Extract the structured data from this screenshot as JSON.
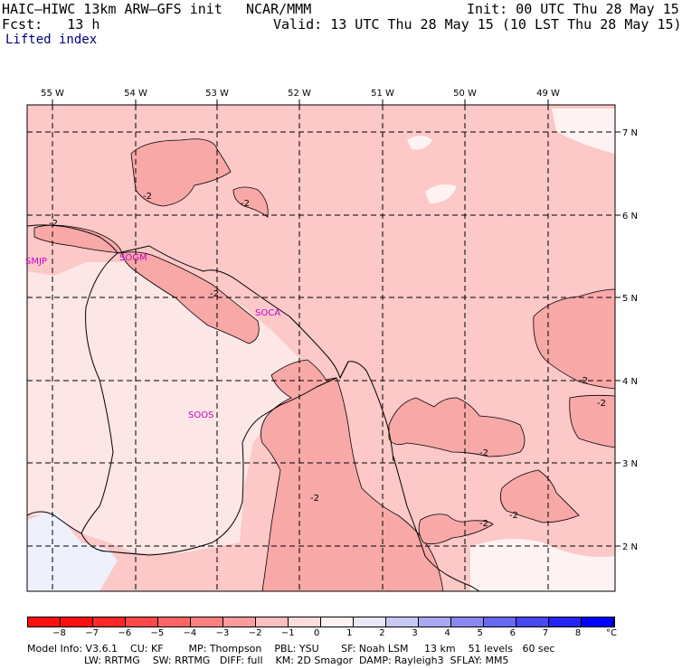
{
  "header": {
    "model_title": "HAIC–HIWC 13km ARW–GFS init",
    "org": "NCAR/MMM",
    "init": "Init: 00 UTC Thu 28 May 15",
    "fcst": "Fcst:   13 h",
    "valid": "Valid: 13 UTC Thu 28 May 15 (10 LST Thu 28 May 15)",
    "field": "Lifted index"
  },
  "map": {
    "lon_labels": [
      "55 W",
      "54 W",
      "53 W",
      "52 W",
      "51 W",
      "50 W",
      "49 W"
    ],
    "lat_labels": [
      "7 N",
      "6 N",
      "5 N",
      "4 N",
      "3 N",
      "2 N"
    ],
    "stations": [
      "SMJP",
      "SOGM",
      "SOCA",
      "SOOS"
    ],
    "contour_label": "-2",
    "colors": {
      "lt_m3": "#f9a8a8",
      "lt_m2": "#fcc8c8",
      "lt_m1": "#fde6e6",
      "lt_0": "#eef0fc",
      "station": "#cc00cc"
    }
  },
  "legend": {
    "ticks": [
      "−8",
      "−7",
      "−6",
      "−5",
      "−4",
      "−3",
      "−2",
      "−1",
      "0",
      "1",
      "2",
      "3",
      "4",
      "5",
      "6",
      "7",
      "8"
    ],
    "unit": "°C",
    "colors": [
      "#ff1010",
      "#ff2828",
      "#ff4848",
      "#ff6464",
      "#fc8080",
      "#fa9c9c",
      "#fcc0c0",
      "#fddcdc",
      "#fef2f2",
      "#e8e8f8",
      "#c8c8f4",
      "#a8a8f0",
      "#8888f0",
      "#6868f0",
      "#4848f0",
      "#2424f4",
      "#0000ff"
    ]
  },
  "footer": {
    "line1": "Model Info: V3.6.1    CU: KF        MP: Thompson    PBL: YSU       SF: Noah LSM     13 km    51 levels   60 sec",
    "line2": "                  LW: RRTMG    SW: RRTMG   DIFF: full    KM: 2D Smagor  DAMP: Rayleigh3  SFLAY: MM5"
  }
}
